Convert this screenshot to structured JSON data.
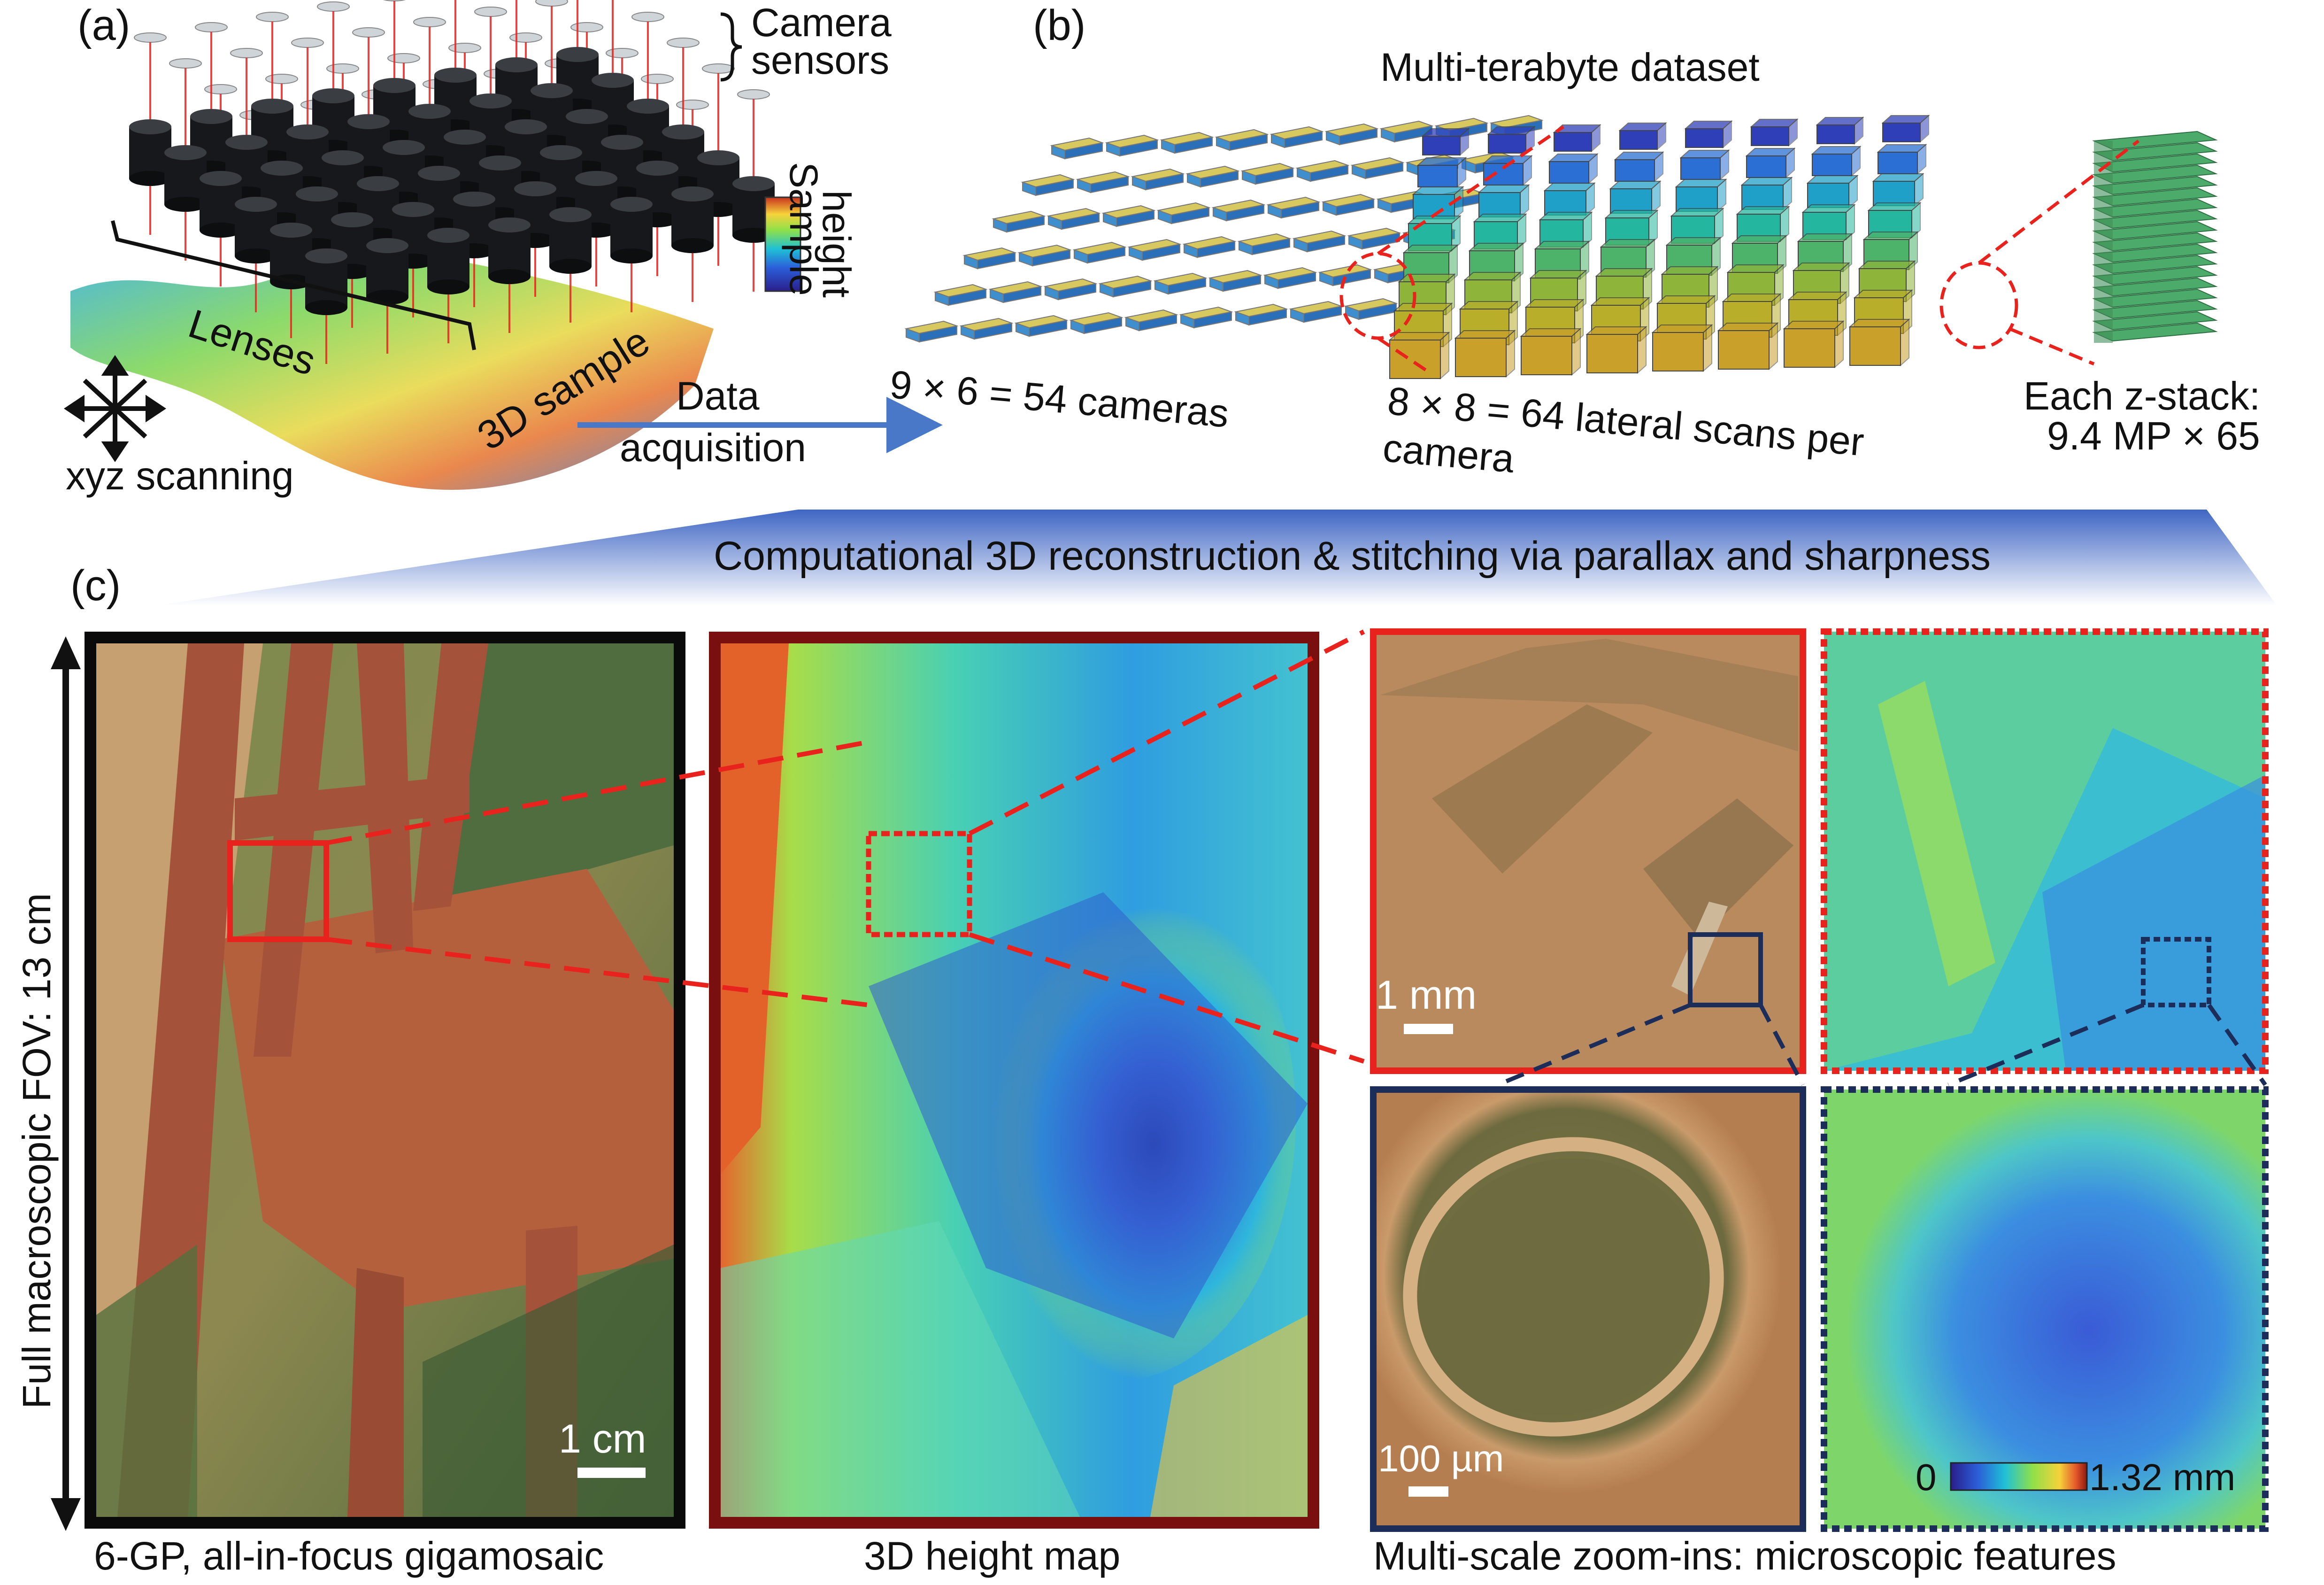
{
  "panel_labels": {
    "a": "(a)",
    "b": "(b)",
    "c": "(c)"
  },
  "panel_a": {
    "camera_sensors": [
      "Camera",
      "sensors"
    ],
    "lenses": "Lenses",
    "sample_height": [
      "Sample",
      "height"
    ],
    "sample": "3D sample",
    "scanning": "xyz scanning",
    "arrow": [
      "Data",
      "acquisition"
    ]
  },
  "panel_b": {
    "title": "Multi-terabyte dataset",
    "cameras": "9 × 6 = 54 cameras",
    "scans": [
      "8 × 8 = 64 lateral scans per",
      "camera"
    ],
    "zstack": [
      "Each z-stack:",
      "9.4 MP × 65"
    ]
  },
  "banner": "Computational 3D reconstruction & stitching via parallax and sharpness",
  "panel_c": {
    "fov": "Full macroscopic FOV: 13 cm",
    "scale_cm": "1 cm",
    "scale_mm": "1 mm",
    "scale_um": "100 µm",
    "colorbar_min": "0",
    "colorbar_max": "1.32 mm",
    "caption_gigamosaic": "6-GP, all-in-focus gigamosaic",
    "caption_height": "3D height map",
    "caption_zoom": "Multi-scale zoom-ins: microscopic features"
  },
  "colors": {
    "red": "#e8231e",
    "navy": "#1c2d5a",
    "dark_red": "#7a0f0f",
    "arrow_blue": "#4a78c8"
  }
}
